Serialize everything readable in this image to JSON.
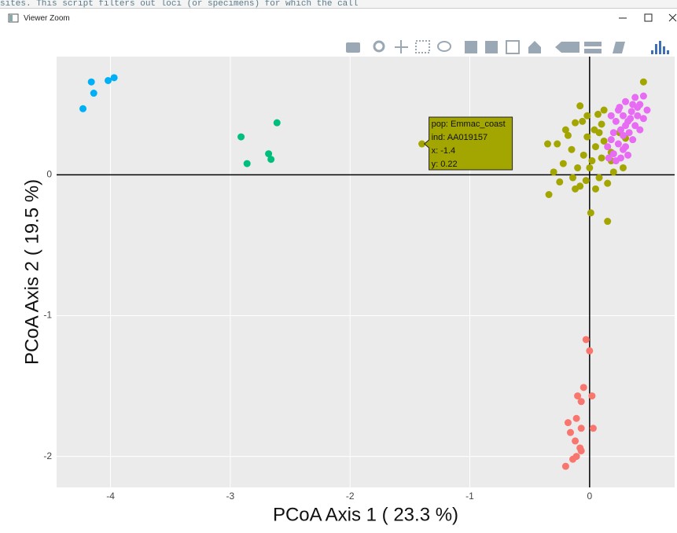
{
  "window": {
    "title": "Viewer Zoom",
    "background_text": "sites. This script filters out loci (or specimens) for which the call"
  },
  "chart_data": {
    "type": "scatter",
    "x_label": "PCoA Axis 1 ( 23.3 %)",
    "y_label": "PCoA Axis 2 ( 19.5 %)",
    "xlim": [
      -4.45,
      0.71
    ],
    "ylim": [
      -2.22,
      0.84
    ],
    "xticks": [
      -4,
      -3,
      -2,
      -1,
      0
    ],
    "yticks": [
      -2,
      -1,
      0
    ],
    "grid": true,
    "series": [
      {
        "color": "#00b0f6",
        "x": [
          -4.23,
          -4.16,
          -4.14,
          -4.02,
          -3.97
        ],
        "y": [
          0.47,
          0.66,
          0.58,
          0.67,
          0.69
        ]
      },
      {
        "color": "#00bf7d",
        "x": [
          -2.91,
          -2.86,
          -2.68,
          -2.66,
          -2.61
        ],
        "y": [
          0.27,
          0.08,
          0.15,
          0.11,
          0.37
        ]
      },
      {
        "color": "#f8766d",
        "x": [
          -0.03,
          0,
          -0.05,
          -0.1,
          0.02,
          -0.07,
          -0.18,
          -0.11,
          -0.07,
          0.03,
          -0.16,
          -0.12,
          -0.08,
          -0.11,
          -0.14,
          -0.2,
          -0.07
        ],
        "y": [
          -1.17,
          -1.25,
          -1.51,
          -1.57,
          -1.57,
          -1.61,
          -1.76,
          -1.73,
          -1.8,
          -1.8,
          -1.83,
          -1.89,
          -1.94,
          -2.0,
          -2.02,
          -2.07,
          -1.96
        ]
      },
      {
        "color": "#a3a500",
        "x": [
          -1.4,
          -0.34,
          0.15,
          0.01,
          -0.08,
          0.07,
          -0.2,
          -0.27,
          -0.12,
          0.04,
          0.1,
          -0.02,
          -0.15,
          -0.05,
          0.05,
          0.12,
          0.18,
          0.2,
          -0.1,
          -0.22,
          -0.3,
          -0.03,
          0.08,
          0.15,
          -0.12,
          -0.25,
          0.02,
          -0.06,
          0.12,
          0.25,
          -0.18,
          0.0,
          0.1,
          -0.08,
          0.05,
          0.18,
          -0.35,
          0.28,
          -0.02,
          0.08,
          0.3,
          0.45,
          -0.14
        ],
        "y": [
          0.22,
          -0.14,
          -0.33,
          -0.27,
          0.49,
          0.43,
          0.32,
          0.22,
          0.37,
          0.32,
          0.36,
          0.27,
          0.18,
          0.14,
          0.2,
          0.24,
          0.1,
          0.02,
          0.05,
          0.08,
          0.02,
          -0.04,
          -0.02,
          -0.06,
          -0.1,
          -0.05,
          0.1,
          0.38,
          0.46,
          0.3,
          0.28,
          0.05,
          0.12,
          -0.08,
          -0.1,
          0.16,
          0.22,
          0.05,
          0.42,
          0.3,
          0.26,
          0.66,
          -0.02
        ]
      },
      {
        "color": "#e76bf3",
        "x": [
          0.25,
          0.3,
          0.38,
          0.45,
          0.42,
          0.35,
          0.28,
          0.22,
          0.32,
          0.4,
          0.45,
          0.2,
          0.26,
          0.33,
          0.38,
          0.18,
          0.24,
          0.3,
          0.36,
          0.42,
          0.2,
          0.26,
          0.32,
          0.15,
          0.22,
          0.28,
          0.34,
          0.4,
          0.48,
          0.36,
          0.18,
          0.24,
          0.3,
          0.16,
          0.28
        ],
        "y": [
          0.48,
          0.52,
          0.55,
          0.56,
          0.5,
          0.45,
          0.42,
          0.38,
          0.38,
          0.42,
          0.4,
          0.3,
          0.32,
          0.3,
          0.35,
          0.25,
          0.22,
          0.2,
          0.25,
          0.32,
          0.15,
          0.12,
          0.14,
          0.2,
          0.1,
          0.28,
          0.4,
          0.48,
          0.46,
          0.5,
          0.42,
          0.46,
          0.35,
          0.12,
          0.18
        ]
      }
    ],
    "tooltip": {
      "lines": [
        "pop: Emmac_coast",
        "ind: AA019157",
        "x: -1.4",
        "y: 0.22"
      ]
    }
  }
}
